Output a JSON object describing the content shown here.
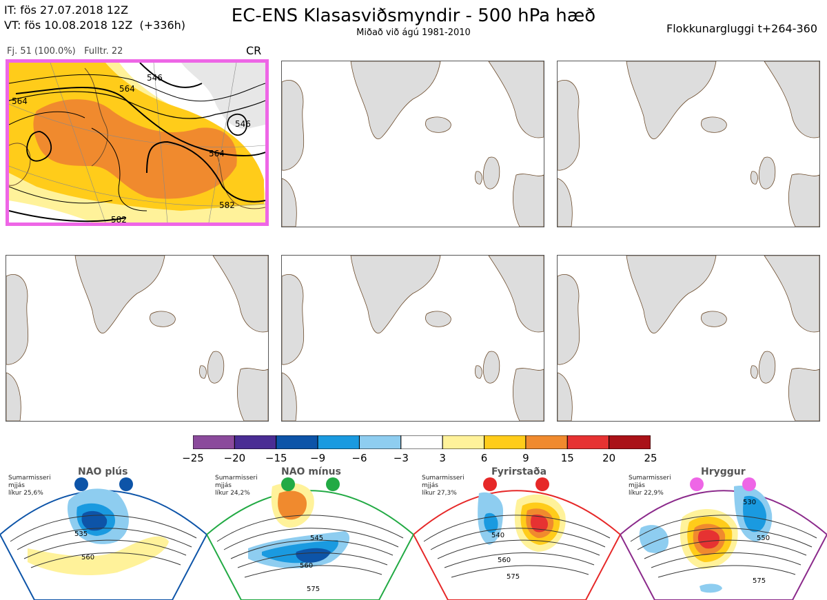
{
  "header": {
    "it_line": "IT: fös 27.07.2018 12Z",
    "vt_line": "VT: fös 10.08.2018 12Z  (+336h)",
    "title": "EC-ENS Klasasviðsmyndir - 500 hPa hæð",
    "subtitle": "Miðað við ágú 1981-2010",
    "window": "Flokkunargluggi t+264-360"
  },
  "cluster": {
    "fj_label": "Fj. 51 (100.0%)",
    "fulltr_label": "Fulltr. 22",
    "regime_code": "CR",
    "contour_labels": [
      "546",
      "564",
      "564",
      "564",
      "546",
      "582",
      "582"
    ]
  },
  "colorbar": {
    "ticks": [
      "−25",
      "−20",
      "−15",
      "−9",
      "−6",
      "−3",
      "3",
      "6",
      "9",
      "15",
      "20",
      "25"
    ],
    "colors": [
      "#8b4a9c",
      "#4a2d94",
      "#0d54a8",
      "#1a9ae0",
      "#8ecdf0",
      "#ffffff",
      "#fff29a",
      "#ffcc1a",
      "#f08a2e",
      "#e63232",
      "#aa1218"
    ]
  },
  "regimes": [
    {
      "name": "NAO plús",
      "desc": "Sumarmisseri\nmjjás\nlíkur 25,6%",
      "color": "#0d54a8",
      "labels": [
        "535",
        "560"
      ]
    },
    {
      "name": "NAO mínus",
      "desc": "Sumarmisseri\nmjjás\nlíkur 24,2%",
      "color": "#22aa44",
      "labels": [
        "545",
        "560",
        "575"
      ]
    },
    {
      "name": "Fyrirstaða",
      "desc": "Sumarmisseri\nmjjás\nlíkur 27,3%",
      "color": "#e62828",
      "labels": [
        "540",
        "560",
        "575"
      ]
    },
    {
      "name": "Hryggur",
      "desc": "Sumarmisseri\nmjjás\nlíkur 22,9%",
      "color": "#8b2a8b",
      "labels": [
        "530",
        "550",
        "575"
      ]
    }
  ]
}
